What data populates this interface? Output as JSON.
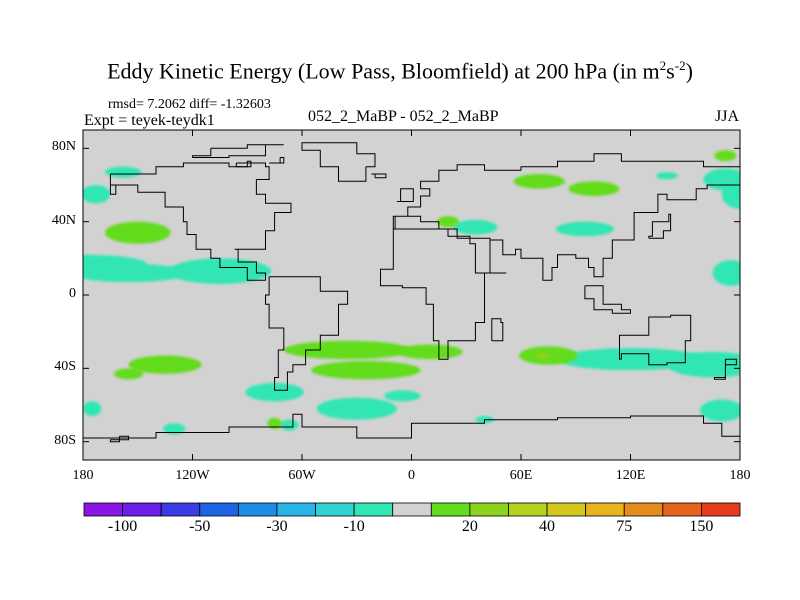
{
  "title_main": "Eddy Kinetic Energy (Low Pass, Bloomfield) at 200 hPa (in m",
  "title_sup1": "2",
  "title_mid": "s",
  "title_sup2": "-2",
  "title_end": ")",
  "stats": "rmsd= 7.2062 diff= -1.32603",
  "expt": "Expt = teyek-teydk1",
  "comparison": "052_2_MaBP - 052_2_MaBP",
  "season": "JJA",
  "chart_data": {
    "type": "heatmap",
    "title": "Eddy Kinetic Energy (Low Pass, Bloomfield) at 200 hPa (in m^2 s^-2)",
    "x_range": [
      -180,
      180
    ],
    "y_range": [
      -90,
      90
    ],
    "lat_ticks": [
      {
        "value": 80,
        "label": "80N"
      },
      {
        "value": 40,
        "label": "40N"
      },
      {
        "value": 0,
        "label": "0"
      },
      {
        "value": -40,
        "label": "40S"
      },
      {
        "value": -80,
        "label": "80S"
      }
    ],
    "lon_ticks": [
      {
        "value": -180,
        "label": "180"
      },
      {
        "value": -120,
        "label": "120W"
      },
      {
        "value": -60,
        "label": "60W"
      },
      {
        "value": 0,
        "label": "0"
      },
      {
        "value": 60,
        "label": "60E"
      },
      {
        "value": 120,
        "label": "120E"
      },
      {
        "value": 180,
        "label": "180"
      }
    ],
    "colorbar": {
      "colors": [
        "#8a16e6",
        "#6a1ee6",
        "#3c3ce6",
        "#1e64e6",
        "#1e8ce6",
        "#28b4e6",
        "#32d2d2",
        "#32e6b4",
        "#d2d2d2",
        "#64dc1e",
        "#8cd21e",
        "#b4d21e",
        "#d2c81e",
        "#e6b41e",
        "#e68c1e",
        "#e6641e",
        "#e63c1e"
      ],
      "labels": [
        {
          "boundary": 1,
          "label": "-100"
        },
        {
          "boundary": 3,
          "label": "-50"
        },
        {
          "boundary": 5,
          "label": "-30"
        },
        {
          "boundary": 7,
          "label": "-10"
        },
        {
          "boundary": 10,
          "label": "20"
        },
        {
          "boundary": 12,
          "label": "40"
        },
        {
          "boundary": 14,
          "label": "75"
        },
        {
          "boundary": 16,
          "label": "150"
        }
      ]
    },
    "regions": [
      {
        "color": "#32e6b4",
        "lon": -158,
        "lat": 67,
        "rlon": 10,
        "rlat": 3
      },
      {
        "color": "#32e6b4",
        "lon": -173,
        "lat": 55,
        "rlon": 8,
        "rlat": 5
      },
      {
        "color": "#32e6b4",
        "lon": -180,
        "lat": 17,
        "rlon": 35,
        "rlat": 5
      },
      {
        "color": "#32e6b4",
        "lon": -155,
        "lat": 12,
        "rlon": 32,
        "rlat": 5
      },
      {
        "color": "#32e6b4",
        "lon": -105,
        "lat": 13,
        "rlon": 28,
        "rlat": 7
      },
      {
        "color": "#32e6b4",
        "lon": 140,
        "lat": 65,
        "rlon": 6,
        "rlat": 2
      },
      {
        "color": "#32e6b4",
        "lon": 172,
        "lat": 63,
        "rlon": 12,
        "rlat": 6
      },
      {
        "color": "#32e6b4",
        "lon": 180,
        "lat": 55,
        "rlon": 10,
        "rlat": 8
      },
      {
        "color": "#32e6b4",
        "lon": 175,
        "lat": 12,
        "rlon": 10,
        "rlat": 7
      },
      {
        "color": "#32e6b4",
        "lon": 35,
        "lat": 37,
        "rlon": 12,
        "rlat": 4
      },
      {
        "color": "#32e6b4",
        "lon": 95,
        "lat": 36,
        "rlon": 16,
        "rlat": 4
      },
      {
        "color": "#32e6b4",
        "lon": -75,
        "lat": -53,
        "rlon": 16,
        "rlat": 5
      },
      {
        "color": "#32e6b4",
        "lon": -30,
        "lat": -62,
        "rlon": 22,
        "rlat": 6
      },
      {
        "color": "#32e6b4",
        "lon": -5,
        "lat": -55,
        "rlon": 10,
        "rlat": 3
      },
      {
        "color": "#32e6b4",
        "lon": -130,
        "lat": -73,
        "rlon": 6,
        "rlat": 3
      },
      {
        "color": "#32e6b4",
        "lon": -67,
        "lat": -71,
        "rlon": 5,
        "rlat": 3
      },
      {
        "color": "#32e6b4",
        "lon": -175,
        "lat": -62,
        "rlon": 5,
        "rlat": 4
      },
      {
        "color": "#32e6b4",
        "lon": 120,
        "lat": -35,
        "rlon": 40,
        "rlat": 6
      },
      {
        "color": "#32e6b4",
        "lon": 165,
        "lat": -38,
        "rlon": 25,
        "rlat": 7
      },
      {
        "color": "#32e6b4",
        "lon": 170,
        "lat": -63,
        "rlon": 12,
        "rlat": 6
      },
      {
        "color": "#32e6b4",
        "lon": 40,
        "lat": -68,
        "rlon": 5,
        "rlat": 2
      },
      {
        "color": "#64dc1e",
        "lon": -150,
        "lat": 34,
        "rlon": 18,
        "rlat": 6
      },
      {
        "color": "#64dc1e",
        "lon": -135,
        "lat": -38,
        "rlon": 20,
        "rlat": 5
      },
      {
        "color": "#64dc1e",
        "lon": -155,
        "lat": -43,
        "rlon": 8,
        "rlat": 3
      },
      {
        "color": "#64dc1e",
        "lon": -35,
        "lat": -30,
        "rlon": 35,
        "rlat": 5
      },
      {
        "color": "#64dc1e",
        "lon": -25,
        "lat": -41,
        "rlon": 30,
        "rlat": 5
      },
      {
        "color": "#64dc1e",
        "lon": 10,
        "lat": -31,
        "rlon": 18,
        "rlat": 4
      },
      {
        "color": "#64dc1e",
        "lon": 75,
        "lat": -33,
        "rlon": 16,
        "rlat": 5
      },
      {
        "color": "#64dc1e",
        "lon": 70,
        "lat": 62,
        "rlon": 14,
        "rlat": 4
      },
      {
        "color": "#64dc1e",
        "lon": 100,
        "lat": 58,
        "rlon": 14,
        "rlat": 4
      },
      {
        "color": "#64dc1e",
        "lon": 20,
        "lat": 40,
        "rlon": 6,
        "rlat": 3
      },
      {
        "color": "#64dc1e",
        "lon": 172,
        "lat": 76,
        "rlon": 6,
        "rlat": 3
      },
      {
        "color": "#64dc1e",
        "lon": -75,
        "lat": -70,
        "rlon": 4,
        "rlat": 3
      },
      {
        "color": "#8cd21e",
        "lon": 72,
        "lat": -33,
        "rlon": 4,
        "rlat": 2
      }
    ],
    "coastlines": [
      [
        [
          -25,
          70
        ],
        [
          -20,
          77
        ],
        [
          -30,
          83
        ],
        [
          -55,
          83
        ],
        [
          -60,
          79
        ],
        [
          -50,
          70
        ],
        [
          -40,
          62
        ],
        [
          -25,
          70
        ]
      ],
      [
        [
          -165,
          66
        ],
        [
          -140,
          70
        ],
        [
          -125,
          72
        ],
        [
          -100,
          70
        ],
        [
          -90,
          72
        ],
        [
          -80,
          70
        ],
        [
          -78,
          63
        ],
        [
          -85,
          55
        ],
        [
          -80,
          50
        ],
        [
          -66,
          45
        ],
        [
          -75,
          35
        ],
        [
          -80,
          25
        ],
        [
          -97,
          25
        ],
        [
          -95,
          18
        ],
        [
          -85,
          12
        ],
        [
          -80,
          8
        ],
        [
          -90,
          15
        ],
        [
          -105,
          20
        ],
        [
          -110,
          25
        ],
        [
          -118,
          33
        ],
        [
          -123,
          40
        ],
        [
          -125,
          48
        ],
        [
          -135,
          56
        ],
        [
          -150,
          60
        ],
        [
          -165,
          55
        ],
        [
          -162,
          60
        ],
        [
          -165,
          66
        ]
      ],
      [
        [
          -110,
          80
        ],
        [
          -90,
          82
        ],
        [
          -70,
          82
        ],
        [
          -80,
          76
        ],
        [
          -100,
          75
        ],
        [
          -120,
          76
        ],
        [
          -110,
          80
        ]
      ],
      [
        [
          -78,
          10
        ],
        [
          -60,
          10
        ],
        [
          -50,
          2
        ],
        [
          -35,
          -5
        ],
        [
          -40,
          -22
        ],
        [
          -50,
          -30
        ],
        [
          -58,
          -38
        ],
        [
          -65,
          -42
        ],
        [
          -68,
          -52
        ],
        [
          -72,
          -52
        ],
        [
          -75,
          -45
        ],
        [
          -73,
          -30
        ],
        [
          -70,
          -18
        ],
        [
          -78,
          -5
        ],
        [
          -80,
          0
        ],
        [
          -78,
          10
        ]
      ],
      [
        [
          -10,
          36
        ],
        [
          10,
          36
        ],
        [
          20,
          32
        ],
        [
          32,
          31
        ],
        [
          43,
          12
        ],
        [
          52,
          12
        ],
        [
          40,
          -15
        ],
        [
          35,
          -25
        ],
        [
          20,
          -35
        ],
        [
          15,
          -25
        ],
        [
          12,
          -5
        ],
        [
          8,
          4
        ],
        [
          -5,
          5
        ],
        [
          -17,
          14
        ],
        [
          -10,
          30
        ],
        [
          -10,
          36
        ]
      ],
      [
        [
          -10,
          36
        ],
        [
          -9,
          43
        ],
        [
          -2,
          48
        ],
        [
          5,
          54
        ],
        [
          10,
          58
        ],
        [
          5,
          62
        ],
        [
          15,
          68
        ],
        [
          25,
          71
        ],
        [
          40,
          68
        ],
        [
          60,
          70
        ],
        [
          80,
          73
        ],
        [
          100,
          77
        ],
        [
          115,
          73
        ],
        [
          140,
          73
        ],
        [
          160,
          70
        ],
        [
          180,
          68
        ],
        [
          180,
          60
        ],
        [
          162,
          58
        ],
        [
          156,
          52
        ],
        [
          140,
          55
        ],
        [
          135,
          45
        ],
        [
          122,
          40
        ],
        [
          122,
          30
        ],
        [
          110,
          20
        ],
        [
          105,
          10
        ],
        [
          100,
          15
        ],
        [
          97,
          20
        ],
        [
          90,
          22
        ],
        [
          80,
          15
        ],
        [
          77,
          8
        ],
        [
          72,
          20
        ],
        [
          60,
          25
        ],
        [
          57,
          22
        ],
        [
          50,
          30
        ],
        [
          43,
          12
        ],
        [
          35,
          28
        ],
        [
          32,
          31
        ],
        [
          25,
          36
        ],
        [
          15,
          40
        ],
        [
          5,
          43
        ],
        [
          -10,
          36
        ]
      ],
      [
        [
          44,
          -25
        ],
        [
          50,
          -15
        ],
        [
          49,
          -13
        ],
        [
          44,
          -16
        ],
        [
          44,
          -25
        ]
      ],
      [
        [
          95,
          5
        ],
        [
          105,
          -5
        ],
        [
          115,
          -8
        ],
        [
          120,
          -10
        ],
        [
          110,
          -8
        ],
        [
          100,
          -2
        ],
        [
          95,
          5
        ]
      ],
      [
        [
          115,
          -35
        ],
        [
          114,
          -22
        ],
        [
          130,
          -12
        ],
        [
          142,
          -11
        ],
        [
          153,
          -25
        ],
        [
          150,
          -37
        ],
        [
          140,
          -38
        ],
        [
          130,
          -32
        ],
        [
          115,
          -35
        ]
      ],
      [
        [
          172,
          -35
        ],
        [
          178,
          -38
        ],
        [
          172,
          -45
        ],
        [
          166,
          -46
        ],
        [
          172,
          -35
        ]
      ],
      [
        [
          -8,
          51
        ],
        [
          -6,
          58
        ],
        [
          -2,
          58
        ],
        [
          1,
          51
        ],
        [
          -8,
          51
        ]
      ],
      [
        [
          -20,
          64
        ],
        [
          -14,
          66
        ],
        [
          -22,
          66
        ],
        [
          -20,
          64
        ]
      ],
      [
        [
          130,
          31
        ],
        [
          138,
          35
        ],
        [
          142,
          44
        ],
        [
          141,
          40
        ],
        [
          132,
          32
        ],
        [
          130,
          31
        ]
      ],
      [
        [
          -180,
          -78
        ],
        [
          -140,
          -75
        ],
        [
          -100,
          -72
        ],
        [
          -65,
          -65
        ],
        [
          -60,
          -72
        ],
        [
          -30,
          -78
        ],
        [
          0,
          -70
        ],
        [
          40,
          -68
        ],
        [
          80,
          -67
        ],
        [
          120,
          -66
        ],
        [
          160,
          -70
        ],
        [
          170,
          -77
        ],
        [
          180,
          -78
        ]
      ],
      [
        [
          -160,
          -77
        ],
        [
          -155,
          -79
        ],
        [
          -165,
          -80
        ],
        [
          -160,
          -77
        ]
      ],
      [
        [
          -96,
          72
        ],
        [
          -90,
          73
        ],
        [
          -88,
          70
        ],
        [
          -96,
          72
        ]
      ],
      [
        [
          -72,
          75
        ],
        [
          -70,
          72
        ],
        [
          -78,
          72
        ],
        [
          -72,
          75
        ]
      ]
    ]
  }
}
